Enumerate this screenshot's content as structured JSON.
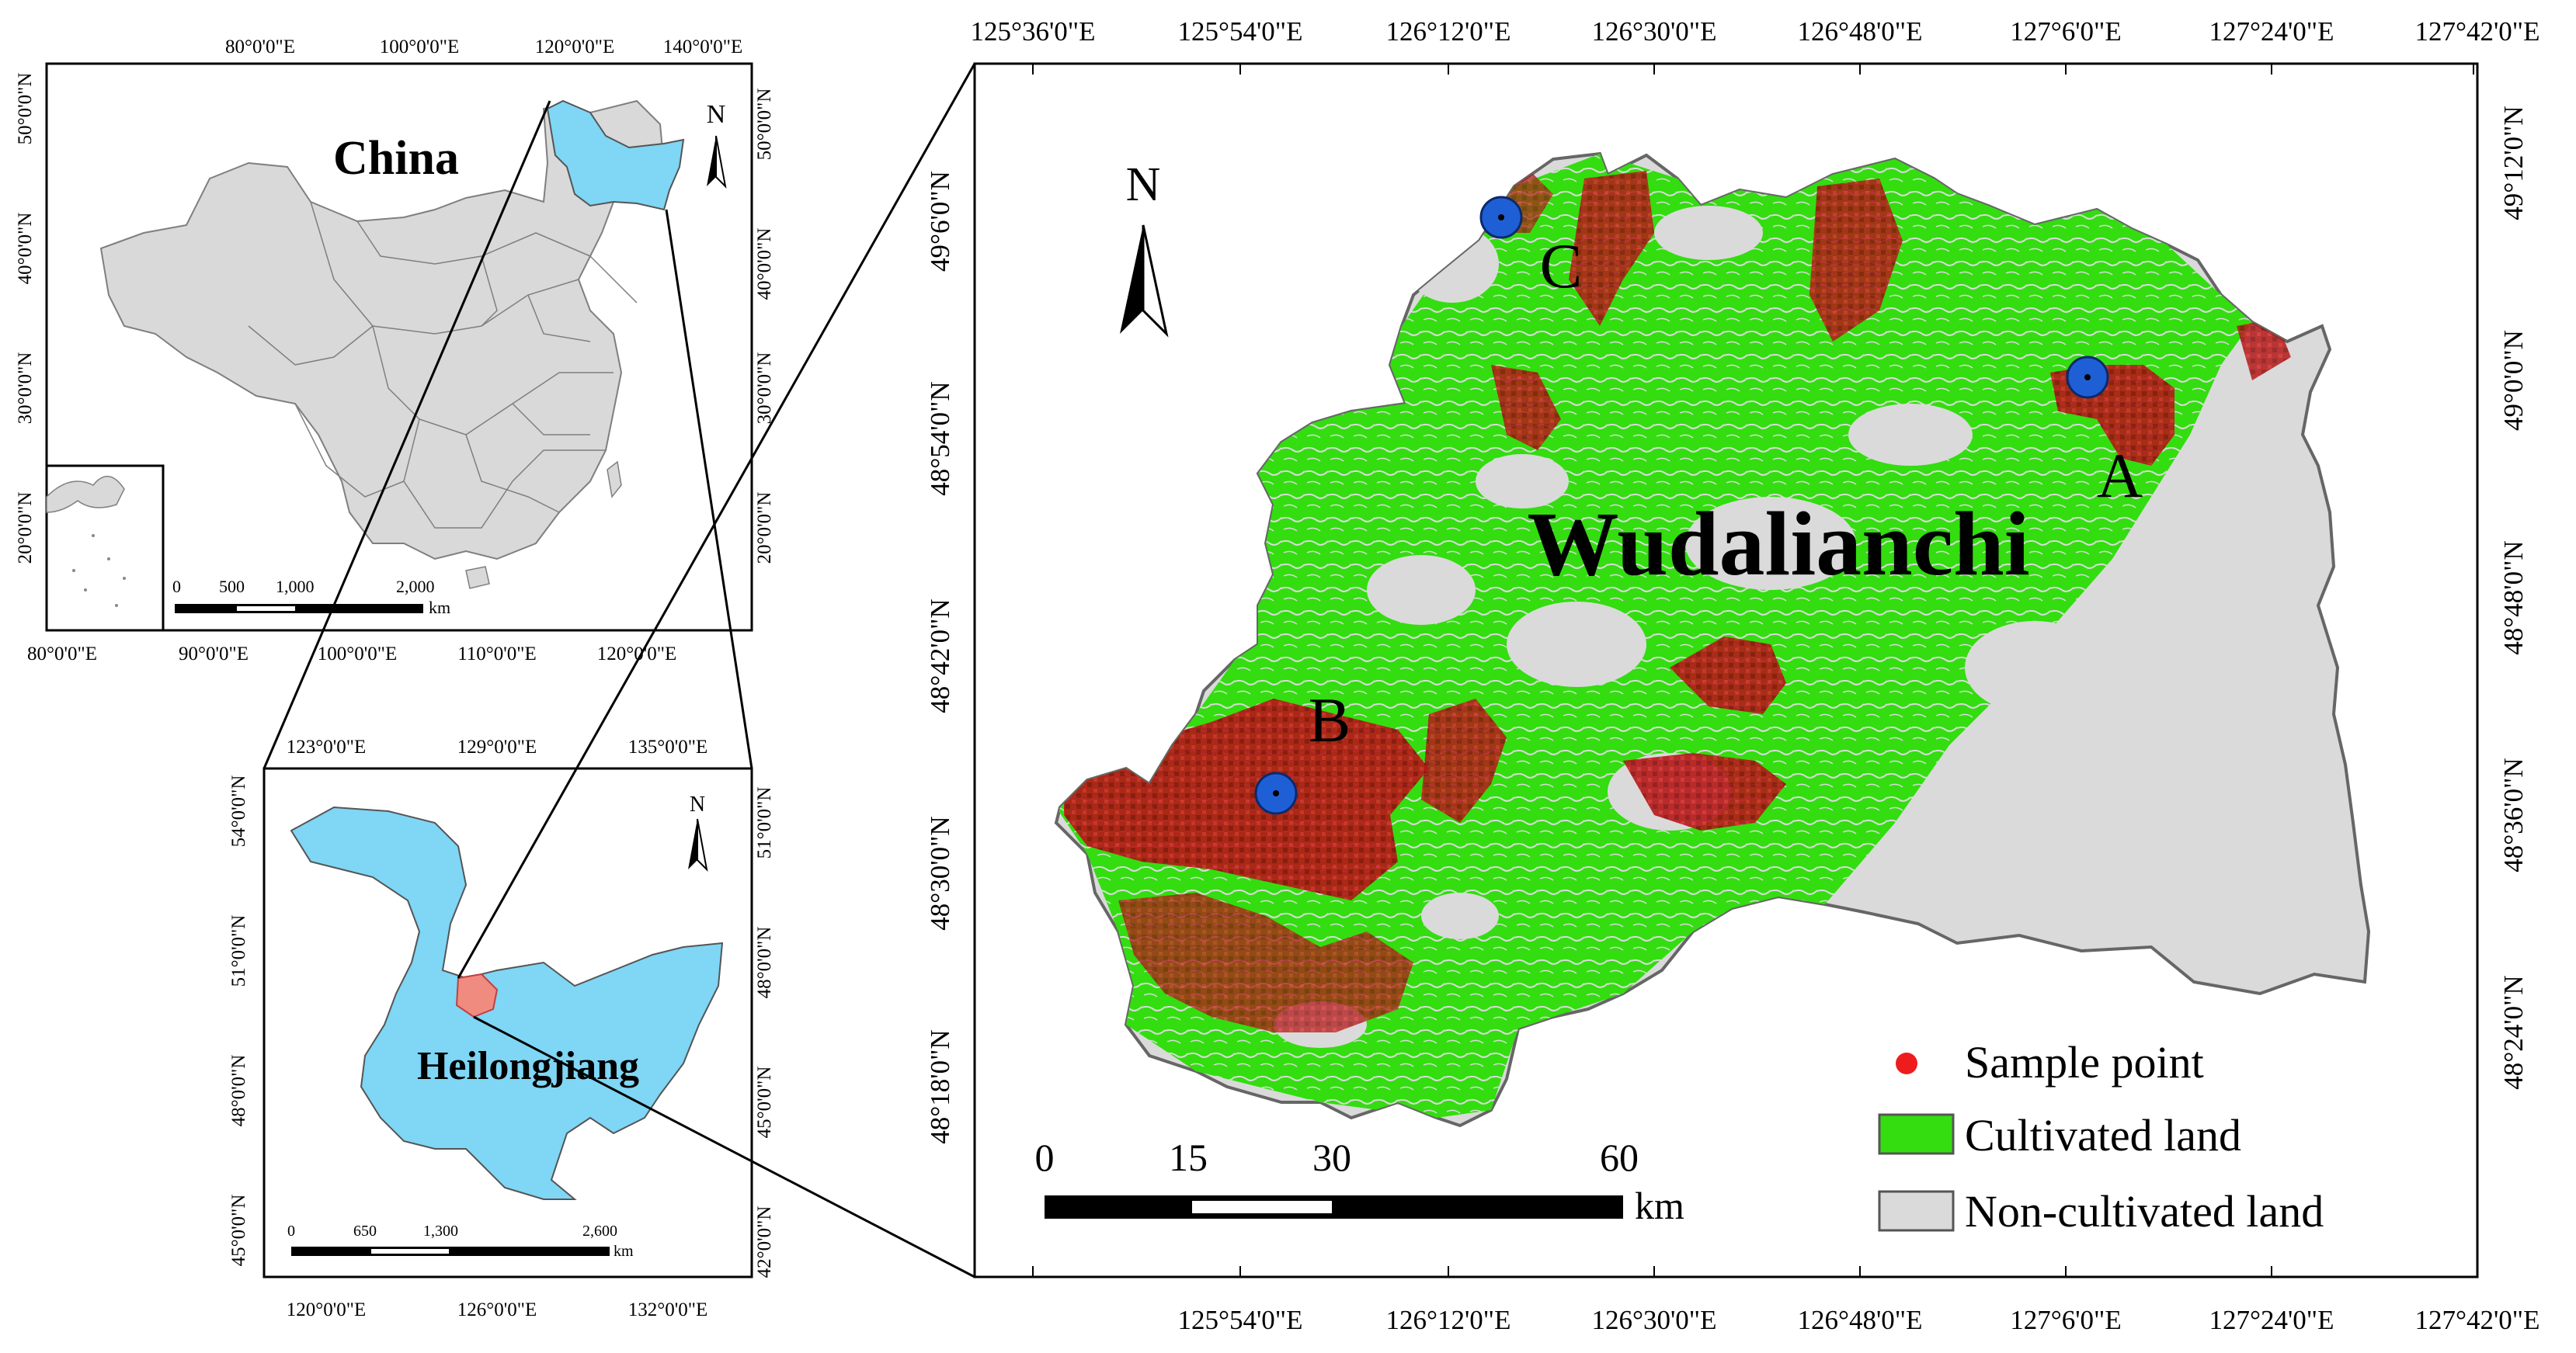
{
  "colors": {
    "china_fill": "#d9d9d9",
    "china_border": "#7f7f7f",
    "heilongjiang_fill": "#7fd6f5",
    "study_area_fill": "#f08b80",
    "cultivated": "#33dd10",
    "non_cultivated": "#dadada",
    "sample": "#b51818",
    "site_marker": "#1f5fd6",
    "frame": "#000000"
  },
  "china_map": {
    "title": "China",
    "north_label": "N",
    "top_ticks": [
      "80°0'0\"E",
      "100°0'0\"E",
      "120°0'0\"E",
      "140°0'0\"E"
    ],
    "bottom_ticks": [
      "80°0'0\"E",
      "90°0'0\"E",
      "100°0'0\"E",
      "110°0'0\"E",
      "120°0'0\"E"
    ],
    "left_ticks": [
      "50°0'0\"N",
      "40°0'0\"N",
      "30°0'0\"N",
      "20°0'0\"N"
    ],
    "right_ticks": [
      "50°0'0\"N",
      "40°0'0\"N",
      "30°0'0\"N",
      "20°0'0\"N"
    ],
    "scale_labels": [
      "0",
      "500",
      "1,000",
      "2,000"
    ],
    "scale_unit": "km"
  },
  "heilongjiang_map": {
    "title": "Heilongjiang",
    "north_label": "N",
    "top_ticks": [
      "123°0'0\"E",
      "129°0'0\"E",
      "135°0'0\"E"
    ],
    "bottom_ticks": [
      "120°0'0\"E",
      "126°0'0\"E",
      "132°0'0\"E"
    ],
    "left_ticks": [
      "54°0'0\"N",
      "51°0'0\"N",
      "48°0'0\"N",
      "45°0'0\"N"
    ],
    "right_ticks": [
      "51°0'0\"N",
      "48°0'0\"N",
      "45°0'0\"N",
      "42°0'0\"N"
    ],
    "scale_labels": [
      "0",
      "650",
      "1,300",
      "2,600"
    ],
    "scale_unit": "km"
  },
  "main_map": {
    "title": "Wudalianchi",
    "north_label": "N",
    "sites": [
      "A",
      "B",
      "C"
    ],
    "top_ticks": [
      "125°36'0\"E",
      "125°54'0\"E",
      "126°12'0\"E",
      "126°30'0\"E",
      "126°48'0\"E",
      "127°6'0\"E",
      "127°24'0\"E",
      "127°42'0\"E"
    ],
    "bottom_ticks": [
      "125°54'0\"E",
      "126°12'0\"E",
      "126°30'0\"E",
      "126°48'0\"E",
      "127°6'0\"E",
      "127°24'0\"E",
      "127°42'0\"E"
    ],
    "left_ticks": [
      "49°6'0\"N",
      "48°54'0\"N",
      "48°42'0\"N",
      "48°30'0\"N",
      "48°18'0\"N"
    ],
    "right_ticks": [
      "49°12'0\"N",
      "49°0'0\"N",
      "48°48'0\"N",
      "48°36'0\"N",
      "48°24'0\"N"
    ],
    "scale_labels": [
      "0",
      "15",
      "30",
      "60"
    ],
    "scale_unit": "km",
    "legend": {
      "sample": "Sample point",
      "cultivated": "Cultivated land",
      "non_cultivated": "Non-cultivated land"
    }
  }
}
